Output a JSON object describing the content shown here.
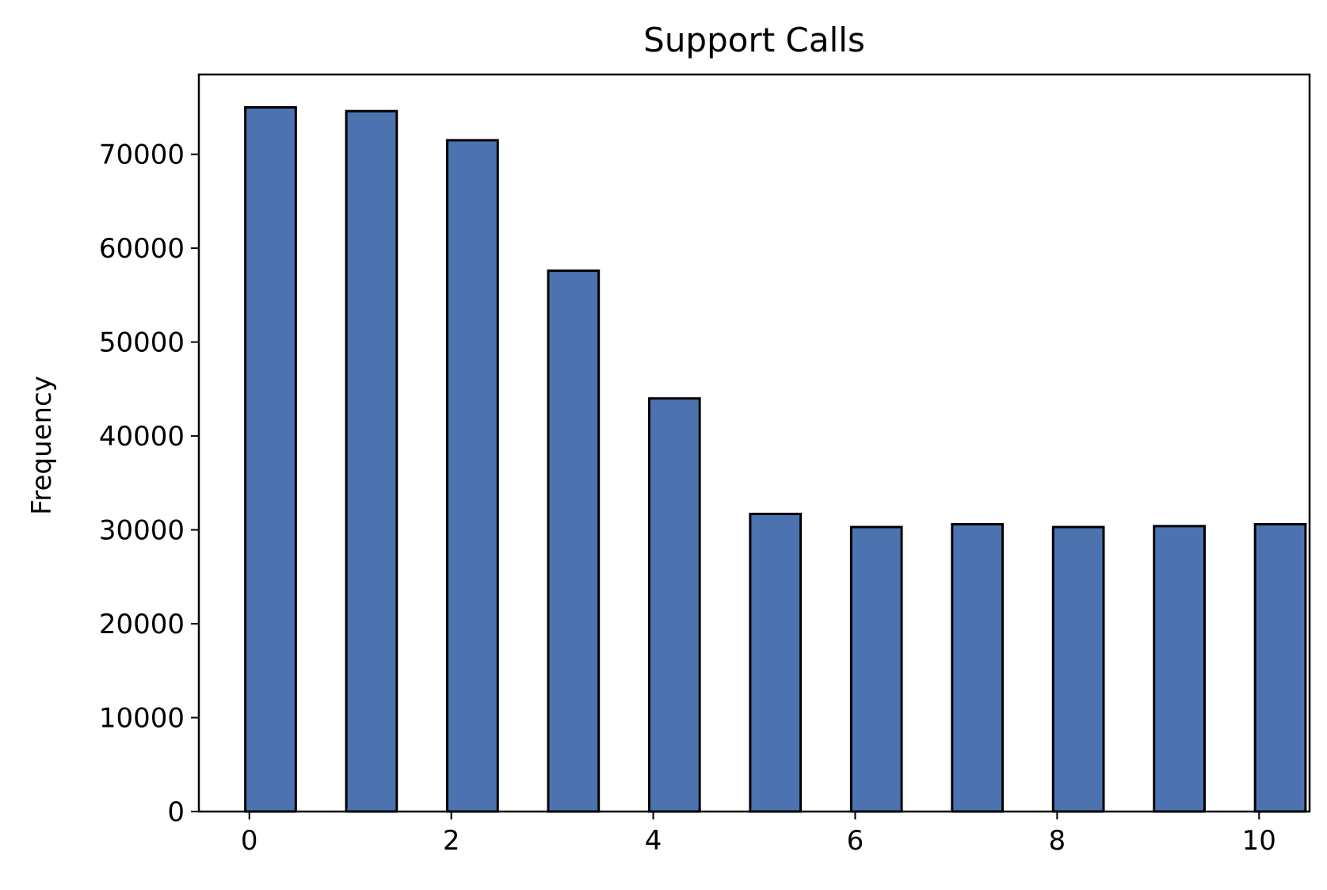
{
  "chart_data": {
    "type": "bar",
    "title": "Support Calls",
    "xlabel": "",
    "ylabel": "Frequency",
    "x": [
      0,
      1,
      2,
      3,
      4,
      5,
      6,
      7,
      8,
      9,
      10
    ],
    "values": [
      75000,
      74600,
      71500,
      57600,
      44000,
      31700,
      30300,
      30600,
      30300,
      30400,
      30600
    ],
    "bin_width": 0.5,
    "xlim": [
      -0.5,
      10.5
    ],
    "ylim": [
      0,
      78500
    ],
    "xticks": [
      0,
      2,
      4,
      6,
      8,
      10
    ],
    "xtick_labels": [
      "0",
      "2",
      "4",
      "6",
      "8",
      "10"
    ],
    "yticks": [
      0,
      10000,
      20000,
      30000,
      40000,
      50000,
      60000,
      70000
    ],
    "ytick_labels": [
      "0",
      "10000",
      "20000",
      "30000",
      "40000",
      "50000",
      "60000",
      "70000"
    ],
    "grid": false,
    "legend": "none",
    "colors": {
      "bar_fill": "#4c72b0",
      "bar_edge": "#000000",
      "axis": "#000000"
    }
  }
}
